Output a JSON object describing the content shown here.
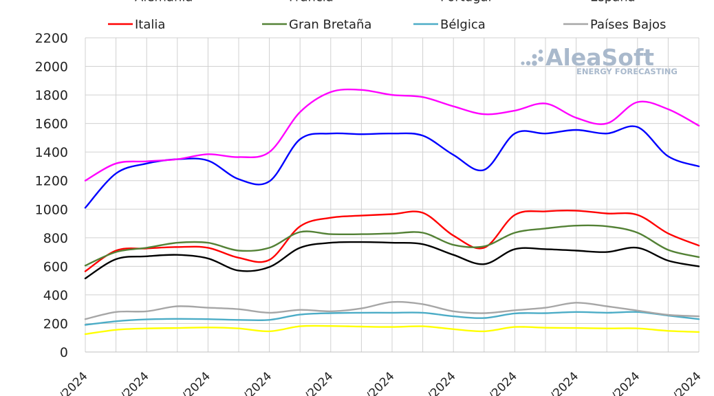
{
  "chart_data": {
    "type": "line",
    "ylim": [
      0,
      2200
    ],
    "yticks": [
      0,
      200,
      400,
      600,
      800,
      1000,
      1200,
      1400,
      1600,
      1800,
      2000,
      2200
    ],
    "x": [
      0,
      1,
      2,
      3,
      4,
      5,
      6,
      7,
      8,
      9,
      10,
      11,
      12,
      13,
      14,
      15,
      16,
      17,
      18,
      19,
      20
    ],
    "xlim": [
      0,
      20
    ],
    "xtick_positions": [
      0,
      2,
      4,
      6,
      8,
      10,
      12,
      14,
      16,
      18,
      20
    ],
    "xtick_labels": [
      "/2024",
      "/2024",
      "/2024",
      "/2024",
      "/2024",
      "/2024",
      "/2024",
      "/2024",
      "/2024",
      "/2024",
      "/2024"
    ],
    "legend_placement": "top",
    "grid": true,
    "series": [
      {
        "name": "Alemania",
        "color": "#000000",
        "values": [
          515,
          650,
          670,
          680,
          655,
          570,
          595,
          730,
          765,
          770,
          765,
          755,
          680,
          615,
          720,
          720,
          710,
          700,
          730,
          640,
          600
        ]
      },
      {
        "name": "Francia",
        "color": "#0000ff",
        "values": [
          1010,
          1250,
          1320,
          1350,
          1340,
          1210,
          1195,
          1490,
          1530,
          1525,
          1530,
          1515,
          1380,
          1275,
          1530,
          1530,
          1555,
          1530,
          1575,
          1370,
          1300
        ]
      },
      {
        "name": "Portugal",
        "color": "#ffff00",
        "values": [
          125,
          155,
          165,
          168,
          172,
          165,
          145,
          180,
          182,
          178,
          175,
          180,
          160,
          145,
          175,
          170,
          168,
          165,
          165,
          148,
          140
        ]
      },
      {
        "name": "España",
        "color": "#ff00ff",
        "values": [
          1200,
          1320,
          1335,
          1350,
          1385,
          1365,
          1400,
          1680,
          1820,
          1835,
          1800,
          1785,
          1720,
          1665,
          1690,
          1740,
          1640,
          1600,
          1750,
          1700,
          1585
        ]
      },
      {
        "name": "Italia",
        "color": "#ff0000",
        "values": [
          565,
          710,
          725,
          735,
          730,
          660,
          645,
          880,
          940,
          955,
          965,
          975,
          815,
          730,
          960,
          985,
          990,
          970,
          960,
          830,
          745
        ]
      },
      {
        "name": "Gran Bretaña",
        "color": "#538135",
        "values": [
          605,
          700,
          730,
          765,
          765,
          710,
          730,
          840,
          825,
          825,
          830,
          835,
          750,
          740,
          835,
          865,
          885,
          880,
          835,
          715,
          665
        ]
      },
      {
        "name": "Bélgica",
        "color": "#4bacc6",
        "values": [
          190,
          215,
          228,
          232,
          230,
          225,
          225,
          262,
          272,
          275,
          275,
          275,
          250,
          238,
          270,
          272,
          280,
          275,
          280,
          255,
          230
        ]
      },
      {
        "name": "Países Bajos",
        "color": "#a6a6a6",
        "values": [
          230,
          280,
          285,
          320,
          310,
          300,
          275,
          295,
          285,
          305,
          350,
          335,
          285,
          272,
          292,
          310,
          345,
          320,
          290,
          260,
          250
        ]
      }
    ]
  },
  "logo": {
    "main": "AleaSoft",
    "sub": "ENERGY FORECASTING"
  }
}
